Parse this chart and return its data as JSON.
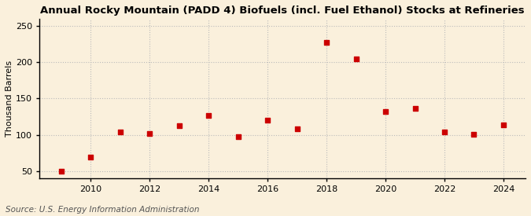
{
  "title": "Annual Rocky Mountain (PADD 4) Biofuels (incl. Fuel Ethanol) Stocks at Refineries",
  "ylabel": "Thousand Barrels",
  "source": "Source: U.S. Energy Information Administration",
  "years": [
    2009,
    2010,
    2011,
    2012,
    2013,
    2014,
    2015,
    2016,
    2017,
    2018,
    2019,
    2020,
    2021,
    2022,
    2023,
    2024
  ],
  "values": [
    50,
    69,
    104,
    102,
    113,
    127,
    97,
    120,
    108,
    227,
    205,
    132,
    136,
    104,
    101,
    114
  ],
  "marker_color": "#CC0000",
  "marker_size": 5,
  "background_color": "#FAF0DC",
  "grid_color": "#BBBBBB",
  "ylim": [
    40,
    260
  ],
  "yticks": [
    50,
    100,
    150,
    200,
    250
  ],
  "xticks": [
    2010,
    2012,
    2014,
    2016,
    2018,
    2020,
    2022,
    2024
  ],
  "title_fontsize": 9.5,
  "label_fontsize": 8,
  "tick_fontsize": 8,
  "source_fontsize": 7.5
}
